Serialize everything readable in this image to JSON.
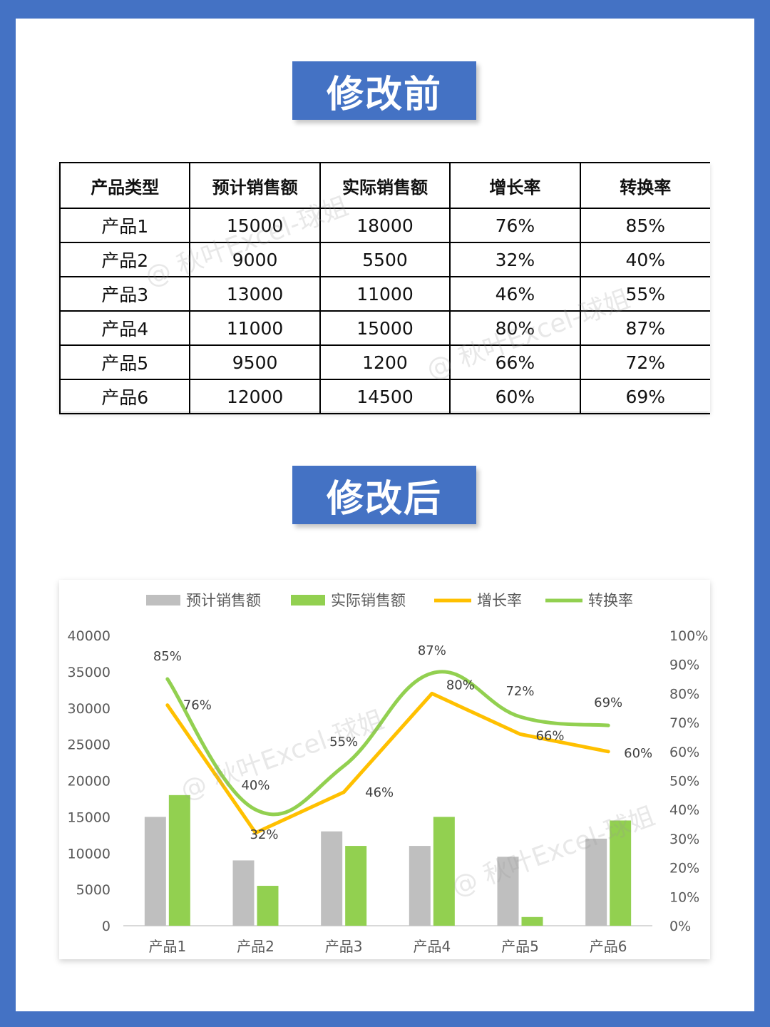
{
  "sections": {
    "before_title": "修改前",
    "after_title": "修改后"
  },
  "watermark": "@ 秋叶Excel-球姐",
  "table": {
    "headers": [
      "产品类型",
      "预计销售额",
      "实际销售额",
      "增长率",
      "转换率"
    ],
    "rows": [
      [
        "产品1",
        "15000",
        "18000",
        "76%",
        "85%"
      ],
      [
        "产品2",
        "9000",
        "5500",
        "32%",
        "40%"
      ],
      [
        "产品3",
        "13000",
        "11000",
        "46%",
        "55%"
      ],
      [
        "产品4",
        "11000",
        "15000",
        "80%",
        "87%"
      ],
      [
        "产品5",
        "9500",
        "1200",
        "66%",
        "72%"
      ],
      [
        "产品6",
        "12000",
        "14500",
        "60%",
        "69%"
      ]
    ]
  },
  "chart_data": {
    "type": "bar",
    "categories": [
      "产品1",
      "产品2",
      "产品3",
      "产品4",
      "产品5",
      "产品6"
    ],
    "series": [
      {
        "name": "预计销售额",
        "type": "bar",
        "axis": "left",
        "color": "#bfbfbf",
        "values": [
          15000,
          9000,
          13000,
          11000,
          9500,
          12000
        ]
      },
      {
        "name": "实际销售额",
        "type": "bar",
        "axis": "left",
        "color": "#92d050",
        "values": [
          18000,
          5500,
          11000,
          15000,
          1200,
          14500
        ]
      },
      {
        "name": "增长率",
        "type": "line",
        "axis": "right",
        "color": "#ffc000",
        "values": [
          0.76,
          0.32,
          0.46,
          0.8,
          0.66,
          0.6
        ],
        "labels": [
          "76%",
          "32%",
          "46%",
          "80%",
          "66%",
          "60%"
        ]
      },
      {
        "name": "转换率",
        "type": "line",
        "axis": "right",
        "color": "#92d050",
        "values": [
          0.85,
          0.4,
          0.55,
          0.87,
          0.72,
          0.69
        ],
        "labels": [
          "85%",
          "40%",
          "55%",
          "87%",
          "72%",
          "69%"
        ]
      }
    ],
    "left_axis": {
      "ylim": [
        0,
        40000
      ],
      "ticks": [
        "0",
        "5000",
        "10000",
        "15000",
        "20000",
        "25000",
        "30000",
        "35000",
        "40000"
      ]
    },
    "right_axis": {
      "ylim": [
        0,
        1
      ],
      "ticks": [
        "0%",
        "10%",
        "20%",
        "30%",
        "40%",
        "50%",
        "60%",
        "70%",
        "80%",
        "90%",
        "100%"
      ]
    },
    "legend": "top",
    "grid": false
  }
}
